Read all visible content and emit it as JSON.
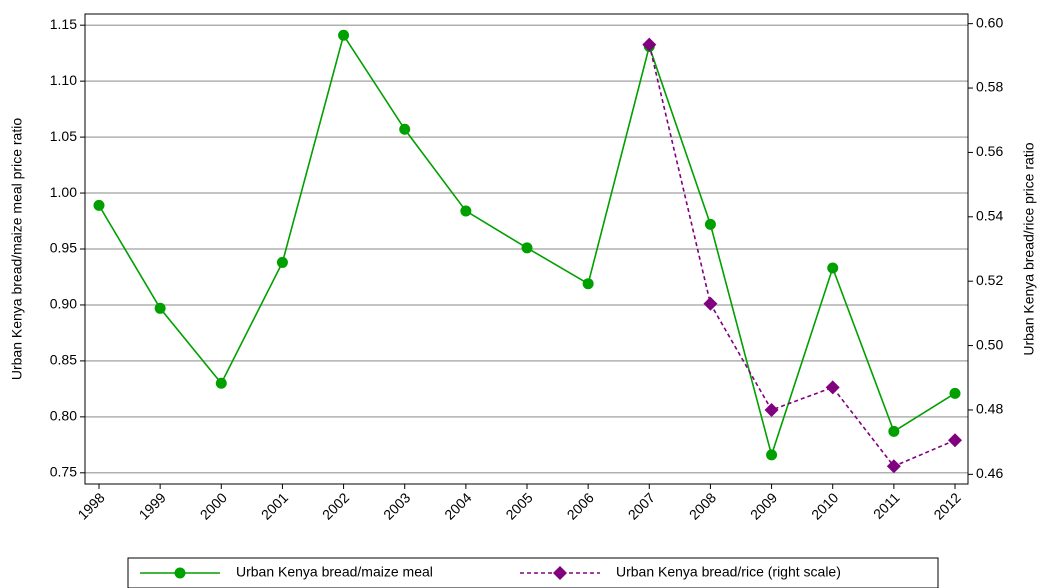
{
  "chart_data": {
    "type": "line",
    "categories": [
      "1998",
      "1999",
      "2000",
      "2001",
      "2002",
      "2003",
      "2004",
      "2005",
      "2006",
      "2007",
      "2008",
      "2009",
      "2010",
      "2011",
      "2012"
    ],
    "series": [
      {
        "name": "Urban Kenya bread/maize meal",
        "color": "#00a000",
        "marker": "circle",
        "line": "solid",
        "values": [
          0.989,
          0.897,
          0.83,
          0.938,
          1.141,
          1.057,
          0.984,
          0.951,
          0.919,
          1.131,
          0.972,
          0.766,
          0.933,
          0.787,
          0.821
        ]
      },
      {
        "name": "Urban Kenya bread/rice (right scale)",
        "color": "#800080",
        "marker": "diamond",
        "line": "dashed",
        "axis": "y2",
        "values": [
          null,
          null,
          null,
          null,
          null,
          null,
          null,
          null,
          null,
          0.5935,
          0.513,
          0.48,
          0.487,
          0.4625,
          0.4706
        ]
      }
    ],
    "ylabel": "Urban Kenya bread/maize meal price ratio",
    "y2label": "Urban Kenya bread/rice price ratio",
    "ylim": [
      0.74,
      1.16
    ],
    "yticks": [
      0.75,
      {
        "value": 0.8,
        "label": "0.80"
      },
      0.85,
      {
        "value": 0.9,
        "label": "0.90"
      },
      0.95,
      {
        "value": 1.0,
        "label": "1.00"
      },
      1.05,
      {
        "value": 1.1,
        "label": "1.10"
      },
      1.15
    ],
    "y2lim": [
      0.457,
      0.603
    ],
    "y2ticks": [
      0.46,
      0.48,
      {
        "value": 0.5,
        "label": "0.50"
      },
      0.52,
      0.54,
      0.56,
      0.58,
      {
        "value": 0.6,
        "label": "0.60"
      }
    ],
    "grid": true
  }
}
